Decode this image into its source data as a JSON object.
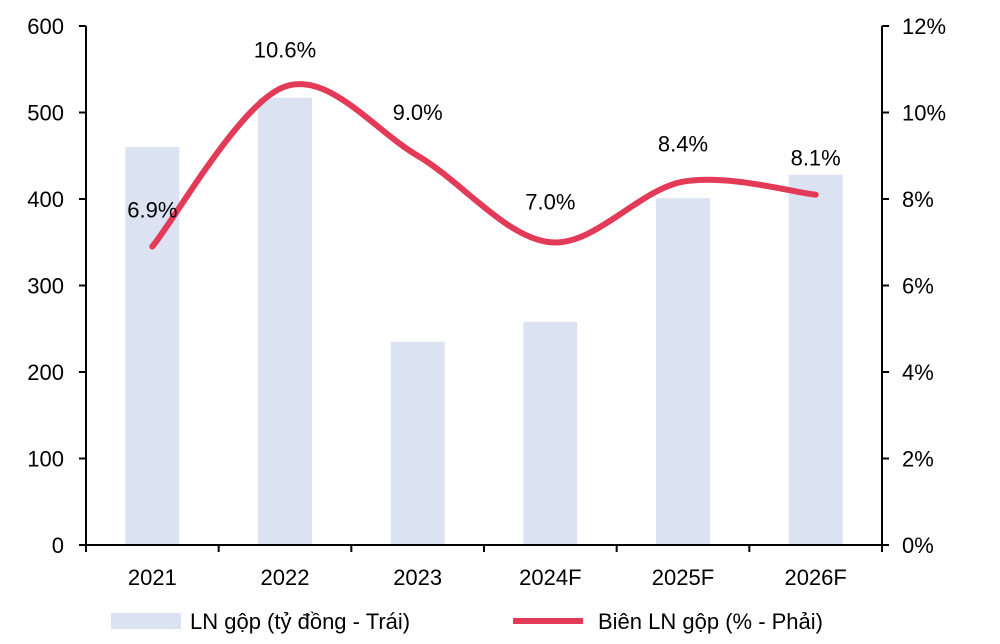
{
  "chart_data": {
    "type": "bar",
    "categories": [
      "2021",
      "2022",
      "2023",
      "2024F",
      "2025F",
      "2026F"
    ],
    "series": [
      {
        "name": "LN gộp (tỷ đồng - Trái)",
        "type": "bar",
        "axis": "left",
        "color": "#dbe2f1",
        "values": [
          460,
          517,
          235,
          258,
          401,
          428
        ]
      },
      {
        "name": "Biên LN gộp (% - Phải)",
        "type": "line",
        "axis": "right",
        "color": "#e23a57",
        "values": [
          6.9,
          10.6,
          9.0,
          7.0,
          8.4,
          8.1
        ],
        "labels": [
          "6.9%",
          "10.6%",
          "9.0%",
          "7.0%",
          "8.4%",
          "8.1%"
        ]
      }
    ],
    "y_left": {
      "min": 0,
      "max": 600,
      "ticks": [
        "0",
        "100",
        "200",
        "300",
        "400",
        "500",
        "600"
      ]
    },
    "y_right": {
      "min": 0,
      "max": 12,
      "ticks": [
        "0%",
        "2%",
        "4%",
        "6%",
        "8%",
        "10%",
        "12%"
      ]
    },
    "grid": false,
    "legend_position": "bottom"
  }
}
